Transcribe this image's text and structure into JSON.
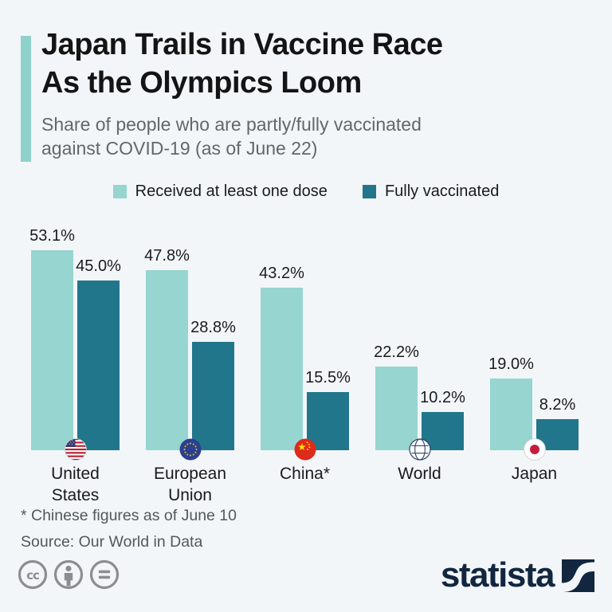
{
  "header": {
    "title": "Japan Trails in Vaccine Race\nAs the Olympics Loom",
    "subtitle": "Share of people who are partly/fully vaccinated\nagainst COVID-19 (as of June 22)"
  },
  "chart_data": {
    "type": "bar",
    "categories": [
      "United States",
      "European Union",
      "China*",
      "World",
      "Japan"
    ],
    "categories_display": [
      "United\nStates",
      "European\nUnion",
      "China*",
      "World",
      "Japan"
    ],
    "series": [
      {
        "name": "Received at least one dose",
        "values": [
          53.1,
          47.8,
          43.2,
          22.2,
          19.0
        ],
        "labels": [
          "53.1%",
          "47.8%",
          "43.2%",
          "22.2%",
          "19.0%"
        ],
        "color": "#97d5d0"
      },
      {
        "name": "Fully vaccinated",
        "values": [
          45.0,
          28.8,
          15.5,
          10.2,
          8.2
        ],
        "labels": [
          "45.0%",
          "28.8%",
          "15.5%",
          "10.2%",
          "8.2%"
        ],
        "color": "#22768b"
      }
    ],
    "ylim": [
      0,
      60
    ],
    "grid": false,
    "legend_position": "top",
    "flag_icons": [
      "us-flag-icon",
      "eu-flag-icon",
      "china-flag-icon",
      "world-globe-icon",
      "japan-flag-icon"
    ]
  },
  "footer": {
    "note": "* Chinese figures as of June 10",
    "source": "Source: Our World in Data",
    "license_icons": [
      "cc-icon",
      "attribution-person-icon",
      "equals-icon"
    ],
    "brand": "statista"
  },
  "colors": {
    "background": "#f2f6f9",
    "accent": "#8fd2cc",
    "bar_light": "#97d5d0",
    "bar_dark": "#22768b",
    "title_text": "#141414",
    "subtitle_text": "#63676b",
    "footnote_text": "#54575b",
    "brand_navy": "#12263f",
    "cc_gray": "#8d8d8d"
  }
}
